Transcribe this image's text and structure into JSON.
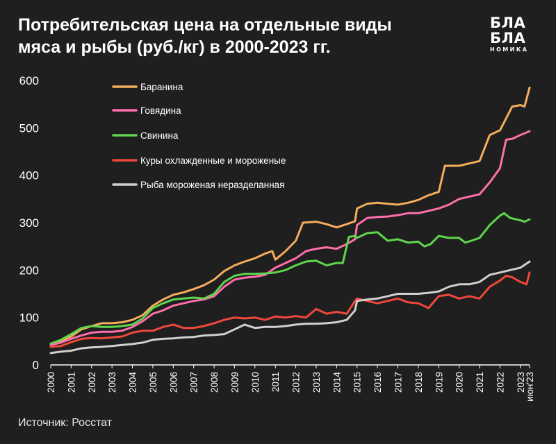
{
  "title": {
    "line1": "Потребительская цена на отдельные виды",
    "line2": "мяса и рыбы (руб./кг) в 2000-2023 гг."
  },
  "logo": {
    "line1": "БЛА",
    "line2": "БЛА",
    "line3": "НОМИКА"
  },
  "source": "Источник: Росстат",
  "colors": {
    "background": "#1f1f1f",
    "axis": "#ffffff",
    "text": "#ffffff",
    "gridline": "#3a3a3a"
  },
  "chart_data": {
    "type": "line",
    "title": "",
    "xlabel": "",
    "ylabel": "",
    "ylim": [
      0,
      600
    ],
    "xlim": [
      2000,
      2023.45
    ],
    "grid": false,
    "legend_position": "top-left",
    "y_ticks": [
      "0",
      "100",
      "200",
      "300",
      "400",
      "500",
      "600"
    ],
    "x_ticks": [
      "2000",
      "2001",
      "2002",
      "2003",
      "2004",
      "2005",
      "2006",
      "2007",
      "2008",
      "2009",
      "2010",
      "2011",
      "2012",
      "2013",
      "2014",
      "2015",
      "2016",
      "2017",
      "2018",
      "2019",
      "2020",
      "2021",
      "2022",
      "2023",
      "июн'23"
    ],
    "series": [
      {
        "name": "Баранина",
        "color": "#f5ad5b",
        "points": [
          [
            2000,
            45
          ],
          [
            2000.5,
            50
          ],
          [
            2001,
            60
          ],
          [
            2001.5,
            75
          ],
          [
            2002,
            82
          ],
          [
            2002.5,
            88
          ],
          [
            2003,
            88
          ],
          [
            2003.5,
            90
          ],
          [
            2004,
            95
          ],
          [
            2004.5,
            105
          ],
          [
            2005,
            125
          ],
          [
            2005.5,
            138
          ],
          [
            2006,
            148
          ],
          [
            2006.5,
            153
          ],
          [
            2007,
            160
          ],
          [
            2007.5,
            168
          ],
          [
            2008,
            180
          ],
          [
            2008.5,
            198
          ],
          [
            2009,
            210
          ],
          [
            2009.5,
            218
          ],
          [
            2010,
            225
          ],
          [
            2010.5,
            235
          ],
          [
            2010.85,
            240
          ],
          [
            2011,
            222
          ],
          [
            2011.5,
            240
          ],
          [
            2012,
            262
          ],
          [
            2012.35,
            300
          ],
          [
            2012.7,
            301
          ],
          [
            2013,
            302
          ],
          [
            2013.5,
            297
          ],
          [
            2014,
            290
          ],
          [
            2014.5,
            297
          ],
          [
            2014.9,
            303
          ],
          [
            2015,
            330
          ],
          [
            2015.5,
            340
          ],
          [
            2016,
            342
          ],
          [
            2016.5,
            340
          ],
          [
            2017,
            338
          ],
          [
            2017.5,
            342
          ],
          [
            2018,
            348
          ],
          [
            2018.5,
            358
          ],
          [
            2019,
            365
          ],
          [
            2019.3,
            420
          ],
          [
            2019.6,
            420
          ],
          [
            2020,
            420
          ],
          [
            2020.5,
            425
          ],
          [
            2021,
            430
          ],
          [
            2021.5,
            485
          ],
          [
            2022,
            495
          ],
          [
            2022.3,
            520
          ],
          [
            2022.6,
            545
          ],
          [
            2023,
            548
          ],
          [
            2023.2,
            545
          ],
          [
            2023.45,
            585
          ]
        ]
      },
      {
        "name": "Говядина",
        "color": "#ff6fab",
        "points": [
          [
            2000,
            42
          ],
          [
            2000.5,
            47
          ],
          [
            2001,
            55
          ],
          [
            2001.5,
            62
          ],
          [
            2002,
            68
          ],
          [
            2002.5,
            70
          ],
          [
            2003,
            70
          ],
          [
            2003.5,
            72
          ],
          [
            2004,
            80
          ],
          [
            2004.5,
            92
          ],
          [
            2005,
            108
          ],
          [
            2005.5,
            115
          ],
          [
            2006,
            125
          ],
          [
            2006.5,
            130
          ],
          [
            2007,
            135
          ],
          [
            2007.5,
            138
          ],
          [
            2008,
            145
          ],
          [
            2008.5,
            165
          ],
          [
            2009,
            180
          ],
          [
            2009.5,
            184
          ],
          [
            2010,
            186
          ],
          [
            2010.5,
            190
          ],
          [
            2011,
            205
          ],
          [
            2011.5,
            215
          ],
          [
            2012,
            225
          ],
          [
            2012.5,
            240
          ],
          [
            2013,
            245
          ],
          [
            2013.5,
            248
          ],
          [
            2014,
            245
          ],
          [
            2014.5,
            255
          ],
          [
            2014.9,
            265
          ],
          [
            2015,
            295
          ],
          [
            2015.5,
            310
          ],
          [
            2016,
            312
          ],
          [
            2016.5,
            313
          ],
          [
            2017,
            316
          ],
          [
            2017.5,
            320
          ],
          [
            2018,
            320
          ],
          [
            2018.5,
            325
          ],
          [
            2019,
            330
          ],
          [
            2019.5,
            338
          ],
          [
            2020,
            350
          ],
          [
            2020.5,
            355
          ],
          [
            2021,
            360
          ],
          [
            2021.5,
            385
          ],
          [
            2022,
            415
          ],
          [
            2022.3,
            475
          ],
          [
            2022.6,
            477
          ],
          [
            2023,
            485
          ],
          [
            2023.45,
            493
          ]
        ]
      },
      {
        "name": "Свинина",
        "color": "#5fd64d",
        "points": [
          [
            2000,
            45
          ],
          [
            2000.5,
            53
          ],
          [
            2001,
            65
          ],
          [
            2001.5,
            78
          ],
          [
            2002,
            82
          ],
          [
            2002.5,
            80
          ],
          [
            2003,
            80
          ],
          [
            2003.5,
            82
          ],
          [
            2004,
            85
          ],
          [
            2004.5,
            98
          ],
          [
            2005,
            120
          ],
          [
            2005.5,
            130
          ],
          [
            2006,
            138
          ],
          [
            2006.5,
            140
          ],
          [
            2007,
            142
          ],
          [
            2007.5,
            140
          ],
          [
            2008,
            150
          ],
          [
            2008.5,
            175
          ],
          [
            2009,
            188
          ],
          [
            2009.5,
            192
          ],
          [
            2010,
            192
          ],
          [
            2010.5,
            193
          ],
          [
            2011,
            195
          ],
          [
            2011.5,
            200
          ],
          [
            2012,
            210
          ],
          [
            2012.5,
            218
          ],
          [
            2013,
            220
          ],
          [
            2013.5,
            210
          ],
          [
            2014,
            215
          ],
          [
            2014.3,
            215
          ],
          [
            2014.6,
            270
          ],
          [
            2014.9,
            272
          ],
          [
            2015,
            268
          ],
          [
            2015.5,
            278
          ],
          [
            2016,
            280
          ],
          [
            2016.5,
            262
          ],
          [
            2017,
            265
          ],
          [
            2017.5,
            258
          ],
          [
            2018,
            260
          ],
          [
            2018.3,
            250
          ],
          [
            2018.6,
            255
          ],
          [
            2019,
            272
          ],
          [
            2019.5,
            268
          ],
          [
            2020,
            268
          ],
          [
            2020.3,
            258
          ],
          [
            2020.6,
            262
          ],
          [
            2021,
            268
          ],
          [
            2021.5,
            295
          ],
          [
            2022,
            315
          ],
          [
            2022.2,
            320
          ],
          [
            2022.5,
            310
          ],
          [
            2023,
            305
          ],
          [
            2023.2,
            302
          ],
          [
            2023.45,
            307
          ]
        ]
      },
      {
        "name": "Куры охлажденные и мороженые",
        "color": "#f0483a",
        "points": [
          [
            2000,
            38
          ],
          [
            2000.5,
            40
          ],
          [
            2001,
            48
          ],
          [
            2001.5,
            55
          ],
          [
            2002,
            57
          ],
          [
            2002.5,
            56
          ],
          [
            2003,
            58
          ],
          [
            2003.5,
            60
          ],
          [
            2004,
            68
          ],
          [
            2004.5,
            72
          ],
          [
            2005,
            72
          ],
          [
            2005.5,
            80
          ],
          [
            2006,
            85
          ],
          [
            2006.5,
            78
          ],
          [
            2007,
            78
          ],
          [
            2007.5,
            82
          ],
          [
            2008,
            88
          ],
          [
            2008.5,
            95
          ],
          [
            2009,
            100
          ],
          [
            2009.5,
            98
          ],
          [
            2010,
            100
          ],
          [
            2010.5,
            95
          ],
          [
            2011,
            102
          ],
          [
            2011.5,
            100
          ],
          [
            2012,
            103
          ],
          [
            2012.5,
            100
          ],
          [
            2013,
            118
          ],
          [
            2013.5,
            108
          ],
          [
            2014,
            112
          ],
          [
            2014.5,
            108
          ],
          [
            2014.9,
            135
          ],
          [
            2015,
            140
          ],
          [
            2015.5,
            135
          ],
          [
            2016,
            130
          ],
          [
            2016.5,
            135
          ],
          [
            2017,
            140
          ],
          [
            2017.5,
            132
          ],
          [
            2018,
            130
          ],
          [
            2018.5,
            120
          ],
          [
            2019,
            145
          ],
          [
            2019.5,
            148
          ],
          [
            2020,
            140
          ],
          [
            2020.5,
            145
          ],
          [
            2021,
            140
          ],
          [
            2021.5,
            165
          ],
          [
            2022,
            178
          ],
          [
            2022.3,
            188
          ],
          [
            2022.6,
            185
          ],
          [
            2023,
            175
          ],
          [
            2023.3,
            170
          ],
          [
            2023.45,
            195
          ]
        ]
      },
      {
        "name": "Рыба мороженая неразделанная",
        "color": "#d0d0d0",
        "points": [
          [
            2000,
            25
          ],
          [
            2000.5,
            28
          ],
          [
            2001,
            30
          ],
          [
            2001.5,
            35
          ],
          [
            2002,
            37
          ],
          [
            2002.5,
            38
          ],
          [
            2003,
            40
          ],
          [
            2003.5,
            42
          ],
          [
            2004,
            44
          ],
          [
            2004.5,
            47
          ],
          [
            2005,
            53
          ],
          [
            2005.5,
            55
          ],
          [
            2006,
            56
          ],
          [
            2006.5,
            58
          ],
          [
            2007,
            59
          ],
          [
            2007.5,
            62
          ],
          [
            2008,
            63
          ],
          [
            2008.5,
            65
          ],
          [
            2009,
            75
          ],
          [
            2009.5,
            85
          ],
          [
            2010,
            78
          ],
          [
            2010.5,
            80
          ],
          [
            2011,
            80
          ],
          [
            2011.5,
            82
          ],
          [
            2012,
            85
          ],
          [
            2012.5,
            87
          ],
          [
            2013,
            87
          ],
          [
            2013.5,
            88
          ],
          [
            2014,
            90
          ],
          [
            2014.5,
            95
          ],
          [
            2014.9,
            115
          ],
          [
            2015,
            135
          ],
          [
            2015.5,
            138
          ],
          [
            2016,
            140
          ],
          [
            2016.5,
            145
          ],
          [
            2017,
            150
          ],
          [
            2017.5,
            150
          ],
          [
            2018,
            150
          ],
          [
            2018.5,
            152
          ],
          [
            2019,
            155
          ],
          [
            2019.5,
            165
          ],
          [
            2020,
            170
          ],
          [
            2020.5,
            170
          ],
          [
            2021,
            175
          ],
          [
            2021.5,
            190
          ],
          [
            2022,
            195
          ],
          [
            2022.5,
            200
          ],
          [
            2023,
            205
          ],
          [
            2023.45,
            218
          ]
        ]
      }
    ]
  }
}
